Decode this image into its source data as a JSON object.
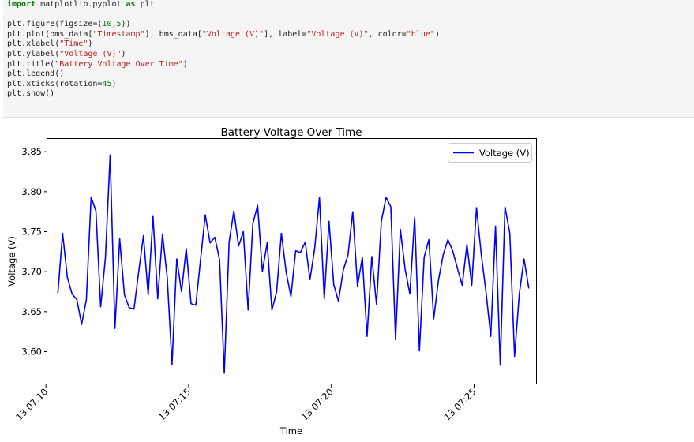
{
  "code_cell": {
    "lines": [
      [
        {
          "t": "import",
          "c": "kw"
        },
        {
          "t": " matplotlib.pyplot "
        },
        {
          "t": "as",
          "c": "kw"
        },
        {
          "t": " plt"
        }
      ],
      [],
      [
        {
          "t": "plt.figure(figsize=("
        },
        {
          "t": "10",
          "c": "num"
        },
        {
          "t": ","
        },
        {
          "t": "5",
          "c": "num"
        },
        {
          "t": "))"
        }
      ],
      [
        {
          "t": "plt.plot(bms_data["
        },
        {
          "t": "\"Timestamp\"",
          "c": "str"
        },
        {
          "t": "], bms_data["
        },
        {
          "t": "\"Voltage (V)\"",
          "c": "str"
        },
        {
          "t": "], label="
        },
        {
          "t": "\"Voltage (V)\"",
          "c": "str"
        },
        {
          "t": ", color="
        },
        {
          "t": "\"blue\"",
          "c": "str"
        },
        {
          "t": ")"
        }
      ],
      [
        {
          "t": "plt.xlabel("
        },
        {
          "t": "\"Time\"",
          "c": "str"
        },
        {
          "t": ")"
        }
      ],
      [
        {
          "t": "plt.ylabel("
        },
        {
          "t": "\"Voltage (V)\"",
          "c": "str"
        },
        {
          "t": ")"
        }
      ],
      [
        {
          "t": "plt.title("
        },
        {
          "t": "\"Battery Voltage Over Time\"",
          "c": "str"
        },
        {
          "t": ")"
        }
      ],
      [
        {
          "t": "plt.legend()"
        }
      ],
      [
        {
          "t": "plt.xticks(rotation="
        },
        {
          "t": "45",
          "c": "num"
        },
        {
          "t": ")"
        }
      ],
      [
        {
          "t": "plt.show()"
        }
      ]
    ]
  },
  "chart_data": {
    "type": "line",
    "title": "Battery Voltage Over Time",
    "xlabel": "Time",
    "ylabel": "Voltage (V)",
    "x_start": "13 07:10:25",
    "x_step_seconds": 10,
    "x_ticks": [
      "13 07:10",
      "13 07:15",
      "13 07:20",
      "13 07:25"
    ],
    "xlim": [
      "13 07:10:03",
      "13 07:27:12"
    ],
    "y_ticks": [
      "3.60",
      "3.65",
      "3.70",
      "3.75",
      "3.80",
      "3.85"
    ],
    "ylim": [
      3.559,
      3.866
    ],
    "legend_position": "upper right",
    "series": [
      {
        "name": "Voltage (V)",
        "color": "#0000ff",
        "values": [
          3.673,
          3.748,
          3.693,
          3.672,
          3.665,
          3.634,
          3.665,
          3.793,
          3.776,
          3.656,
          3.717,
          3.846,
          3.629,
          3.741,
          3.671,
          3.655,
          3.653,
          3.7,
          3.745,
          3.671,
          3.769,
          3.666,
          3.747,
          3.693,
          3.584,
          3.716,
          3.675,
          3.729,
          3.66,
          3.658,
          3.715,
          3.771,
          3.736,
          3.743,
          3.715,
          3.573,
          3.737,
          3.776,
          3.732,
          3.75,
          3.652,
          3.76,
          3.783,
          3.7,
          3.736,
          3.652,
          3.675,
          3.748,
          3.699,
          3.669,
          3.726,
          3.724,
          3.737,
          3.69,
          3.729,
          3.793,
          3.666,
          3.763,
          3.684,
          3.663,
          3.702,
          3.721,
          3.775,
          3.682,
          3.718,
          3.619,
          3.719,
          3.659,
          3.763,
          3.793,
          3.781,
          3.615,
          3.753,
          3.703,
          3.672,
          3.768,
          3.601,
          3.718,
          3.74,
          3.641,
          3.689,
          3.721,
          3.74,
          3.726,
          3.704,
          3.683,
          3.734,
          3.683,
          3.78,
          3.722,
          3.675,
          3.619,
          3.757,
          3.583,
          3.781,
          3.748,
          3.594,
          3.672,
          3.716,
          3.679
        ]
      }
    ]
  }
}
